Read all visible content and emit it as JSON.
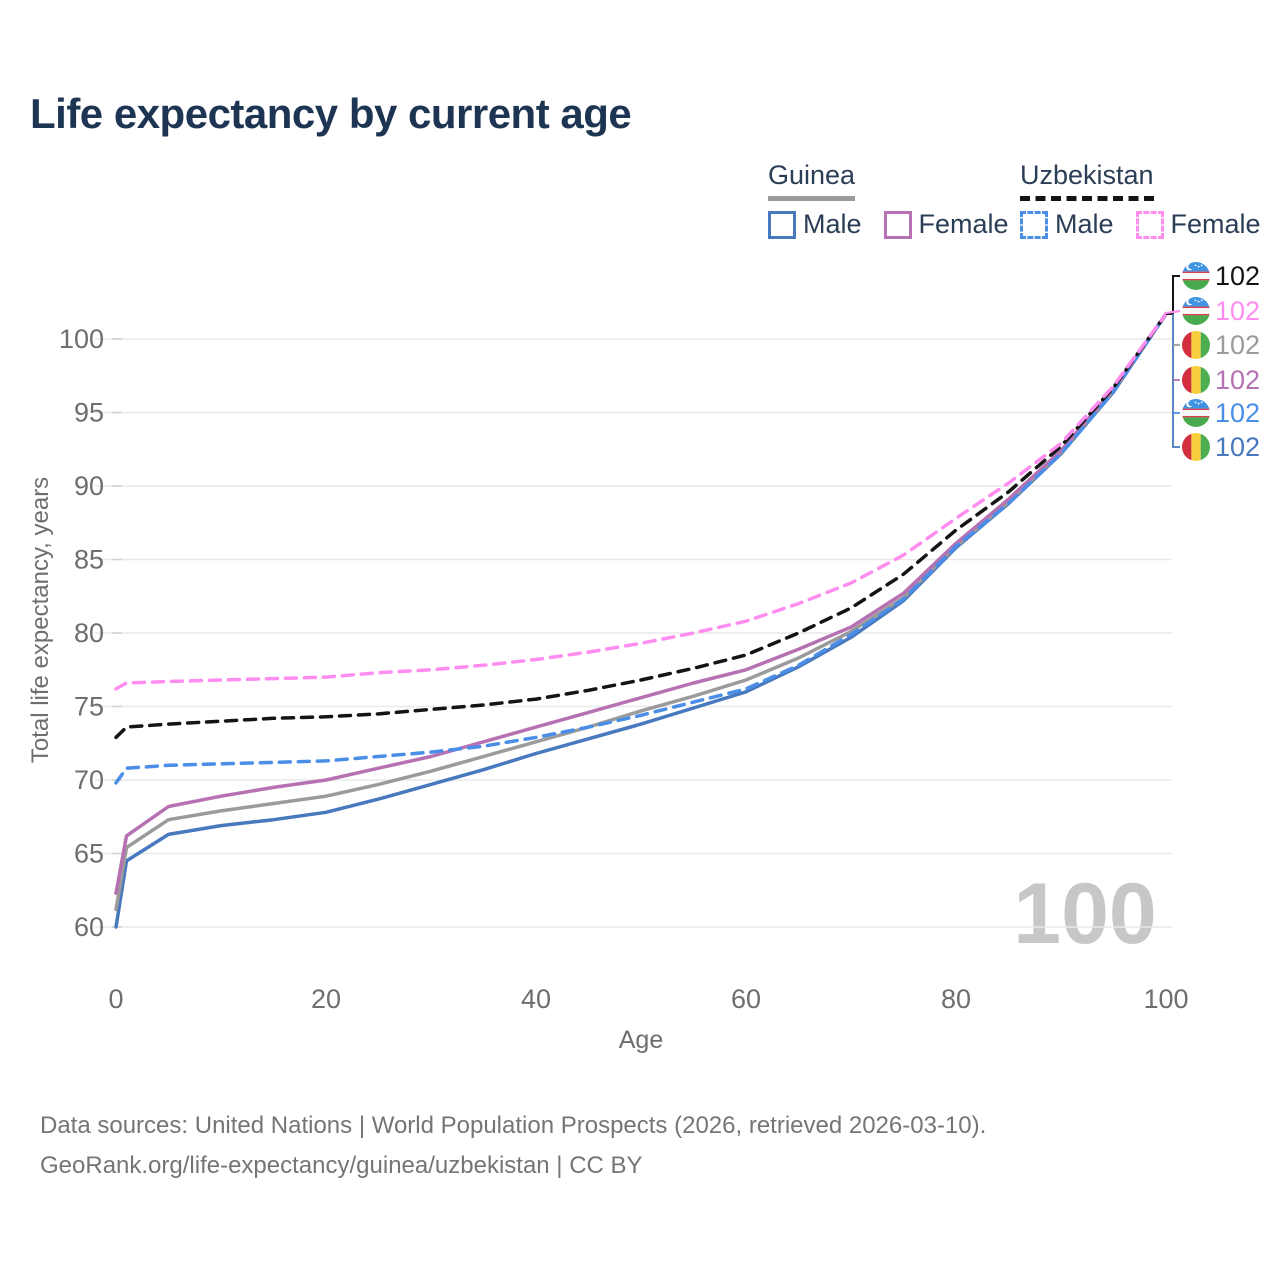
{
  "title": "Life expectancy by current age",
  "legend": {
    "groups": [
      {
        "id": "guinea",
        "label": "Guinea",
        "line_style": "solid",
        "underline_color": "#9b9b9b",
        "items": [
          {
            "id": "guinea-male",
            "label": "Male",
            "color": "#4878bd",
            "dash": false
          },
          {
            "id": "guinea-female",
            "label": "Female",
            "color": "#b671b3",
            "dash": false
          }
        ]
      },
      {
        "id": "uzbekistan",
        "label": "Uzbekistan",
        "line_style": "dashed",
        "underline_color": "#141414",
        "items": [
          {
            "id": "uzbekistan-male",
            "label": "Male",
            "color": "#4a8ee8",
            "dash": true
          },
          {
            "id": "uzbekistan-female",
            "label": "Female",
            "color": "#ff8df0",
            "dash": true
          }
        ]
      }
    ]
  },
  "chart_data": {
    "type": "line",
    "title": "Life expectancy by current age",
    "xlabel": "Age",
    "ylabel": "Total life expectancy, years",
    "xlim": [
      0,
      100
    ],
    "ylim": [
      60,
      100
    ],
    "x_ticks": [
      0,
      20,
      40,
      60,
      80,
      100
    ],
    "y_ticks": [
      60,
      65,
      70,
      75,
      80,
      85,
      90,
      95,
      100
    ],
    "grid": true,
    "legend_position": "top-right",
    "x": [
      0,
      1,
      5,
      10,
      15,
      20,
      25,
      30,
      35,
      40,
      45,
      50,
      55,
      60,
      65,
      70,
      75,
      80,
      85,
      90,
      95,
      100
    ],
    "series": [
      {
        "name": "Guinea Male",
        "color": "#4878bd",
        "dash": "solid",
        "values": [
          60.0,
          64.5,
          66.3,
          66.9,
          67.3,
          67.8,
          68.7,
          69.7,
          70.7,
          71.8,
          72.8,
          73.8,
          74.9,
          76.0,
          77.7,
          79.7,
          82.2,
          85.8,
          88.8,
          92.2,
          96.4,
          101.7
        ]
      },
      {
        "name": "Guinea Both sexes",
        "color": "#9b9b9b",
        "dash": "solid",
        "values": [
          61.2,
          65.4,
          67.3,
          67.9,
          68.4,
          68.9,
          69.7,
          70.6,
          71.6,
          72.6,
          73.6,
          74.7,
          75.7,
          76.8,
          78.3,
          80.1,
          82.4,
          85.9,
          88.9,
          92.3,
          96.5,
          101.7
        ]
      },
      {
        "name": "Guinea Female",
        "color": "#b671b3",
        "dash": "solid",
        "values": [
          62.3,
          66.2,
          68.2,
          68.9,
          69.5,
          70.0,
          70.8,
          71.6,
          72.6,
          73.6,
          74.6,
          75.6,
          76.6,
          77.5,
          78.9,
          80.4,
          82.7,
          86.1,
          89.1,
          92.4,
          96.6,
          101.7
        ]
      },
      {
        "name": "Uzbekistan Male",
        "color": "#4a8ee8",
        "dash": "dashed",
        "values": [
          69.8,
          70.8,
          71.0,
          71.1,
          71.2,
          71.3,
          71.6,
          71.9,
          72.3,
          72.9,
          73.6,
          74.4,
          75.3,
          76.2,
          77.8,
          79.9,
          82.3,
          85.9,
          88.8,
          92.2,
          96.4,
          101.7
        ]
      },
      {
        "name": "Uzbekistan Both sexes",
        "color": "#141414",
        "dash": "dashed",
        "values": [
          72.9,
          73.6,
          73.8,
          74.0,
          74.2,
          74.3,
          74.5,
          74.8,
          75.1,
          75.5,
          76.1,
          76.8,
          77.6,
          78.5,
          80.0,
          81.7,
          84.0,
          87.0,
          89.6,
          92.7,
          96.7,
          101.7
        ]
      },
      {
        "name": "Uzbekistan Female",
        "color": "#ff8df0",
        "dash": "dashed",
        "values": [
          76.2,
          76.6,
          76.7,
          76.8,
          76.9,
          77.0,
          77.3,
          77.5,
          77.8,
          78.2,
          78.7,
          79.3,
          80.0,
          80.8,
          82.0,
          83.4,
          85.3,
          87.8,
          90.2,
          92.9,
          96.8,
          101.7
        ]
      }
    ],
    "end_labels": [
      {
        "flag": "uzbekistan",
        "text": "102",
        "color": "#141414"
      },
      {
        "flag": "uzbekistan",
        "text": "102",
        "color": "#ff8df0"
      },
      {
        "flag": "guinea",
        "text": "102",
        "color": "#9b9b9b"
      },
      {
        "flag": "guinea",
        "text": "102",
        "color": "#b671b3"
      },
      {
        "flag": "uzbekistan",
        "text": "102",
        "color": "#4a8ee8"
      },
      {
        "flag": "guinea",
        "text": "102",
        "color": "#4878bd"
      }
    ],
    "watermark": "100"
  },
  "footer": {
    "line1": "Data sources: United Nations | World Population Prospects (2026, retrieved 2026-03-10).",
    "line2": "GeoRank.org/life-expectancy/guinea/uzbekistan | CC BY"
  }
}
